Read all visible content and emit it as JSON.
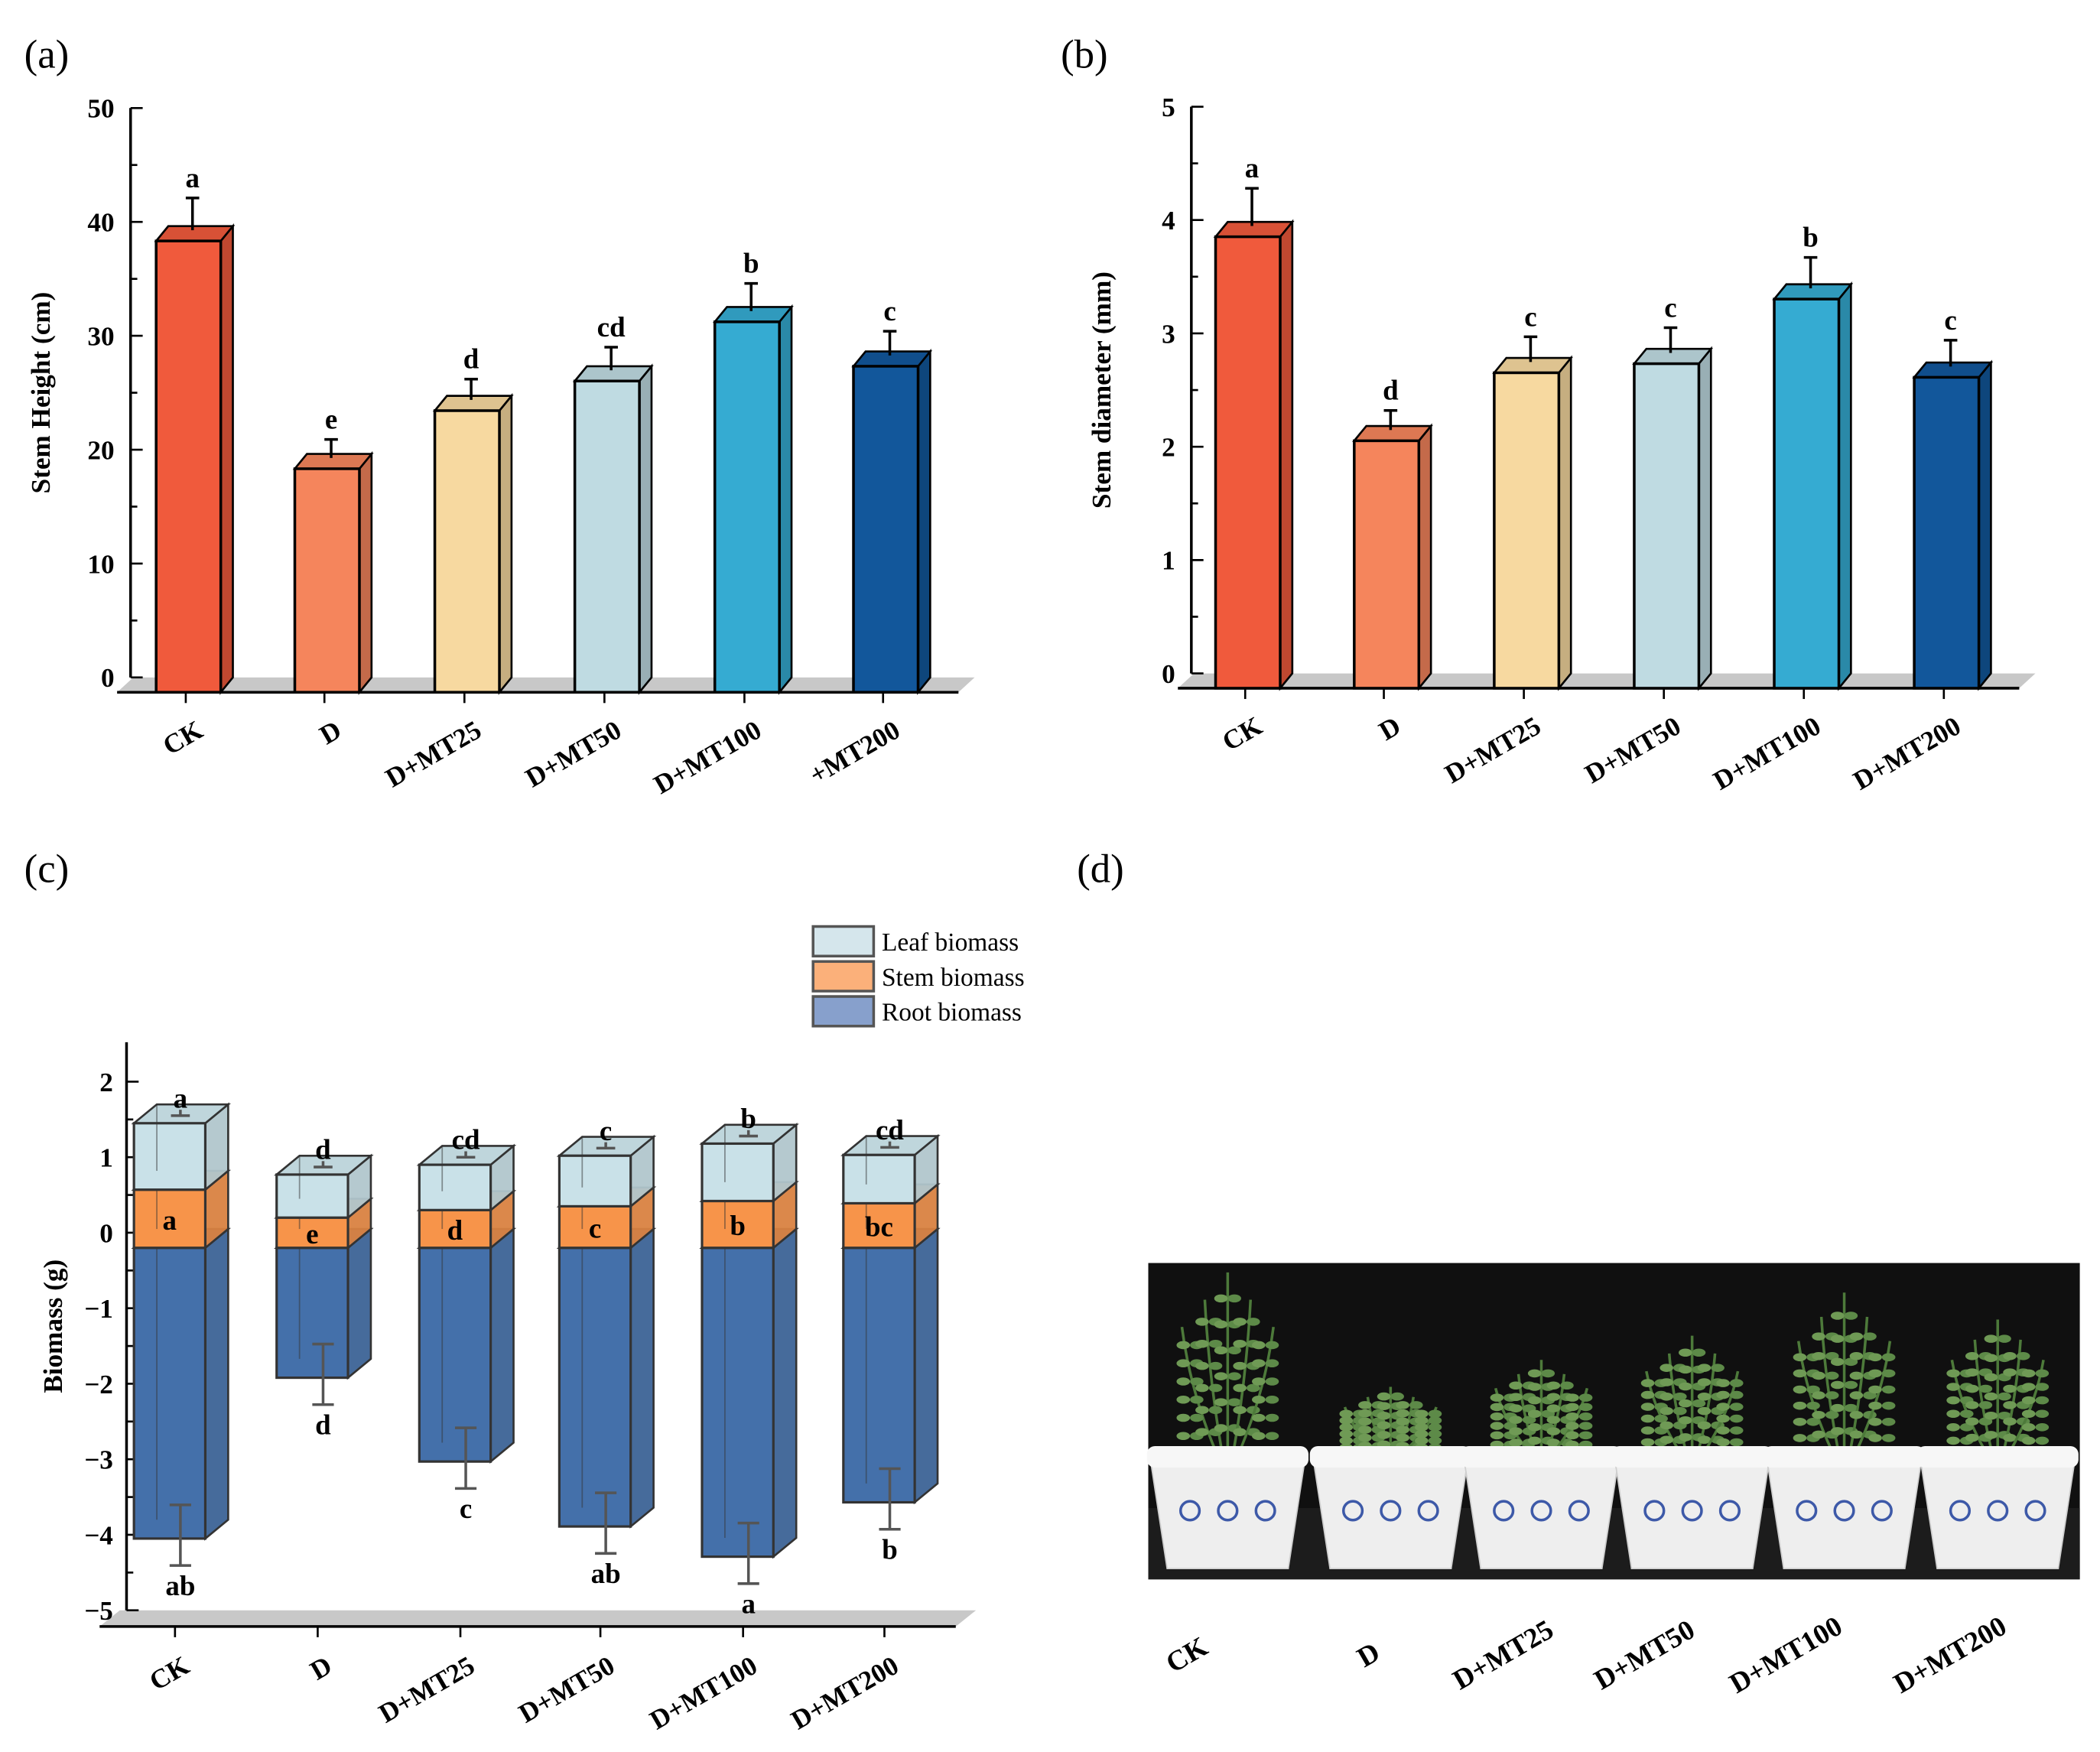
{
  "panel_labels": [
    "(a)",
    "(b)",
    "(c)",
    "(d)"
  ],
  "chart_data": [
    {
      "type": "bar",
      "panel": "(a)",
      "ylabel": "Stem Height  (cm)",
      "ylim": [
        0,
        50
      ],
      "yticks": [
        "0",
        "10",
        "20",
        "30",
        "40",
        "50"
      ],
      "categories": [
        "CK",
        "D",
        "D+MT25",
        "D+MT50",
        "D+MT100",
        "+MT200"
      ],
      "values": [
        38.8,
        18.8,
        23.9,
        26.5,
        31.7,
        27.8
      ],
      "errors": [
        3.3,
        2.1,
        2.3,
        2.5,
        2.9,
        2.6
      ],
      "letters": [
        "a",
        "e",
        "d",
        "cd",
        "b",
        "c"
      ],
      "colors": [
        "#f05a3c",
        "#f5855c",
        "#f7d9a0",
        "#bfdbe2",
        "#35abd2",
        "#12579b"
      ]
    },
    {
      "type": "bar",
      "panel": "(b)",
      "ylabel": "Stem diameter  (mm)",
      "ylim": [
        0,
        5
      ],
      "yticks": [
        "0",
        "1",
        "2",
        "3",
        "4",
        "5"
      ],
      "categories": [
        "CK",
        "D",
        "D+MT25",
        "D+MT50",
        "D+MT100",
        "D+MT200"
      ],
      "values": [
        3.9,
        2.1,
        2.7,
        2.78,
        3.35,
        2.66
      ],
      "errors": [
        0.38,
        0.22,
        0.27,
        0.27,
        0.32,
        0.28
      ],
      "letters": [
        "a",
        "d",
        "c",
        "c",
        "b",
        "c"
      ],
      "colors": [
        "#f05a3c",
        "#f5855c",
        "#f7d9a0",
        "#bfdbe2",
        "#35abd2",
        "#12579b"
      ]
    },
    {
      "type": "bar",
      "panel": "(c)",
      "ylabel": "Biomass (g)",
      "ylim": [
        -5,
        2.5
      ],
      "yticks": [
        "−5",
        "−4",
        "−3",
        "−2",
        "−1",
        "0",
        "1",
        "2"
      ],
      "categories": [
        "CK",
        "D",
        "D+MT25",
        "D+MT50",
        "D+MT100",
        "D+MT200"
      ],
      "stem_base": -0.2,
      "series": [
        {
          "name": "Leaf biomass",
          "color": "#c9e1e8",
          "top": [
            1.45,
            0.77,
            0.9,
            1.02,
            1.18,
            1.03
          ],
          "letters": [
            "a",
            "d",
            "cd",
            "c",
            "b",
            "cd"
          ]
        },
        {
          "name": "Stem biomass",
          "color": "#f7944a",
          "top": [
            0.57,
            0.2,
            0.3,
            0.35,
            0.42,
            0.39
          ],
          "letters": [
            "a",
            "e",
            "d",
            "c",
            "b",
            "bc"
          ]
        },
        {
          "name": "Root biomass",
          "color": "#4470aa",
          "bottom": [
            -4.05,
            -1.92,
            -3.03,
            -3.89,
            -4.29,
            -3.57
          ],
          "letters": [
            "ab",
            "d",
            "c",
            "ab",
            "a",
            "b"
          ]
        }
      ]
    }
  ],
  "photo": {
    "labels": [
      "CK",
      "D",
      "D+MT25",
      "D+MT50",
      "D+MT100",
      "D+MT200"
    ]
  }
}
